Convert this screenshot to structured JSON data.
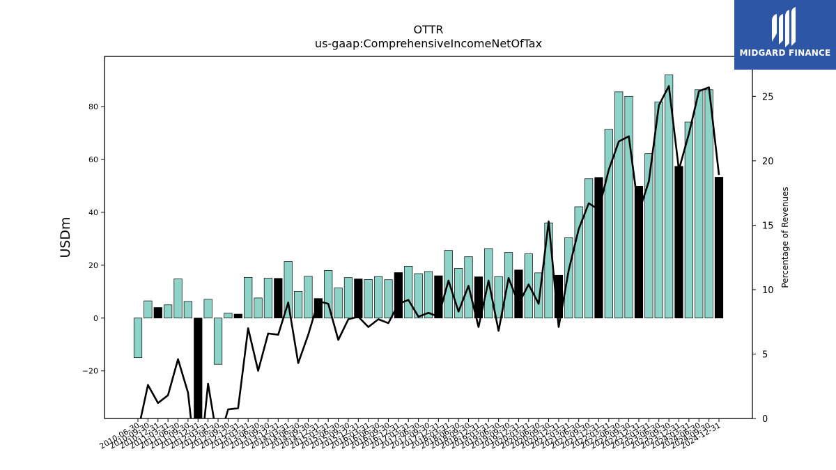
{
  "chart_data": {
    "type": "bar",
    "title": "OTTR",
    "subtitle": "us-gaap:ComprehensiveIncomeNetOfTax",
    "ylabel": "USDm",
    "y2label": "Percentage of Revenues",
    "ylim": [
      -38,
      99
    ],
    "y2lim": [
      0,
      28.1
    ],
    "yticks": [
      -20,
      0,
      20,
      40,
      60,
      80
    ],
    "y2ticks": [
      0,
      5,
      10,
      15,
      20,
      25
    ],
    "categories": [
      "2010-06-30",
      "2010-09-30",
      "2010-12-31",
      "2011-03-31",
      "2011-06-30",
      "2011-09-30",
      "2011-12-31",
      "2012-03-31",
      "2012-06-30",
      "2012-09-30",
      "2012-12-31",
      "2013-03-31",
      "2013-06-30",
      "2013-09-30",
      "2013-12-31",
      "2014-03-31",
      "2014-06-30",
      "2014-09-30",
      "2014-12-31",
      "2015-03-31",
      "2015-06-30",
      "2015-09-30",
      "2015-12-31",
      "2016-03-31",
      "2016-06-30",
      "2016-09-30",
      "2016-12-31",
      "2017-03-31",
      "2017-06-30",
      "2017-09-30",
      "2017-12-31",
      "2018-03-31",
      "2018-06-30",
      "2018-09-30",
      "2018-12-31",
      "2019-03-31",
      "2019-06-30",
      "2019-09-30",
      "2019-12-31",
      "2020-03-31",
      "2020-06-30",
      "2020-09-30",
      "2020-12-31",
      "2021-03-31",
      "2021-06-30",
      "2021-09-30",
      "2021-12-31",
      "2022-03-31",
      "2022-06-30",
      "2022-09-30",
      "2022-12-31",
      "2023-03-31",
      "2023-06-30",
      "2023-09-30",
      "2023-12-31",
      "2024-03-31",
      "2024-06-30",
      "2024-09-30",
      "2024-12-31"
    ],
    "series": [
      {
        "kind": "bar",
        "axis": "left",
        "values": [
          -15,
          6.5,
          4,
          5,
          14.8,
          6.3,
          -38,
          7.1,
          -17.5,
          1.8,
          1.5,
          15.4,
          7.6,
          15.1,
          15,
          21.4,
          10.1,
          15.8,
          7.4,
          18,
          11.4,
          15.3,
          14.8,
          14.6,
          15.7,
          14.5,
          17.2,
          19.6,
          16.8,
          17.6,
          16,
          25.6,
          18.8,
          23.2,
          15.6,
          26.3,
          15.7,
          24.8,
          18.2,
          24.3,
          17.1,
          36,
          16.2,
          30.4,
          42.1,
          52.7,
          53.2,
          71.4,
          85.6,
          83.9,
          49.9,
          62.2,
          81.8,
          92,
          57.4,
          74.2,
          86.4,
          86.4,
          53.3
        ],
        "colors": [
          "#8dd3c7",
          "#8dd3c7",
          "#000000",
          "#8dd3c7",
          "#8dd3c7",
          "#8dd3c7",
          "#000000",
          "#8dd3c7",
          "#8dd3c7",
          "#8dd3c7",
          "#000000",
          "#8dd3c7",
          "#8dd3c7",
          "#8dd3c7",
          "#000000",
          "#8dd3c7",
          "#8dd3c7",
          "#8dd3c7",
          "#000000",
          "#8dd3c7",
          "#8dd3c7",
          "#8dd3c7",
          "#000000",
          "#8dd3c7",
          "#8dd3c7",
          "#8dd3c7",
          "#000000",
          "#8dd3c7",
          "#8dd3c7",
          "#8dd3c7",
          "#000000",
          "#8dd3c7",
          "#8dd3c7",
          "#8dd3c7",
          "#000000",
          "#8dd3c7",
          "#8dd3c7",
          "#8dd3c7",
          "#000000",
          "#8dd3c7",
          "#8dd3c7",
          "#8dd3c7",
          "#000000",
          "#8dd3c7",
          "#8dd3c7",
          "#8dd3c7",
          "#000000",
          "#8dd3c7",
          "#8dd3c7",
          "#8dd3c7",
          "#000000",
          "#8dd3c7",
          "#8dd3c7",
          "#8dd3c7",
          "#000000",
          "#8dd3c7",
          "#8dd3c7",
          "#8dd3c7",
          "#000000"
        ]
      },
      {
        "kind": "line",
        "axis": "right",
        "color": "#000000",
        "values": [
          -1,
          2.6,
          1.2,
          1.8,
          4.6,
          2,
          -5,
          2.7,
          -2,
          0.7,
          0.8,
          7,
          3.7,
          6.6,
          6.5,
          9,
          4.3,
          6.5,
          9.1,
          8.9,
          6.1,
          7.7,
          7.9,
          7.1,
          7.7,
          7.4,
          8.9,
          9.2,
          7.9,
          8.2,
          7.9,
          10.7,
          8.3,
          10.3,
          7.1,
          10.7,
          6.8,
          10.9,
          8.9,
          10.4,
          8.9,
          15.3,
          7.1,
          11.5,
          14.7,
          16.7,
          16.2,
          19.3,
          21.5,
          21.9,
          16,
          18.4,
          24.3,
          25.8,
          19.3,
          22.1,
          25.4,
          25.7,
          18.9
        ]
      }
    ]
  },
  "logo": {
    "text": "MIDGARD FINANCE",
    "background": "#2e56a6"
  }
}
